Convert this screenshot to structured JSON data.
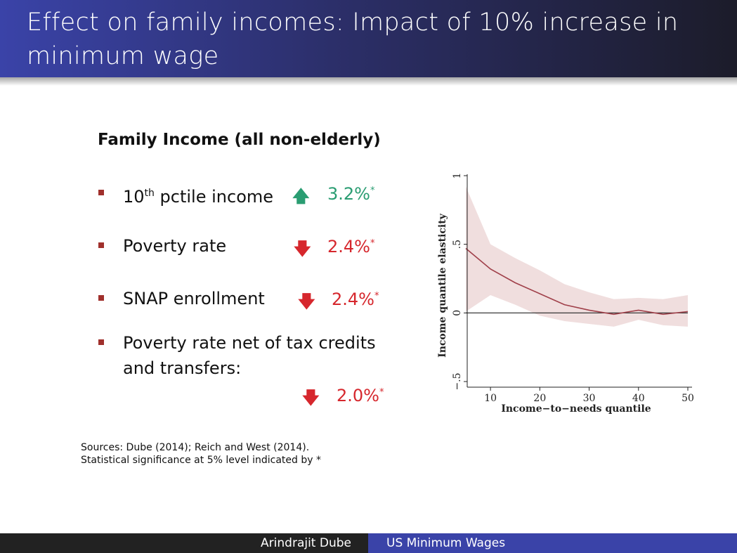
{
  "header": {
    "title": "Effect on family incomes: Impact of 10% increase in minimum wage"
  },
  "main": {
    "subtitle": "Family Income  (all non-elderly)",
    "items": [
      {
        "label": "10",
        "label_sup": "th",
        "label_rest": " pctile income",
        "direction": "up",
        "value": "3.2%",
        "marker": "*"
      },
      {
        "label": "Poverty rate",
        "direction": "down",
        "value": "2.4%",
        "marker": "*"
      },
      {
        "label": "SNAP enrollment",
        "direction": "down",
        "value": "2.4%",
        "marker": "*"
      },
      {
        "label": "Poverty rate net of tax credits",
        "label_line2": "and transfers:",
        "direction": "down",
        "value": "2.0%",
        "marker": "*"
      }
    ],
    "arrows": {
      "up": "🡅",
      "down": "🡇"
    },
    "sources": [
      "Sources: Dube (2014); Reich and West (2014).",
      "Statistical significance at 5% level indicated by *"
    ]
  },
  "chart_data": {
    "type": "line",
    "title": "",
    "xlabel": "Income−to−needs quantile",
    "ylabel": "Income quantile elasticity",
    "xlim": [
      5,
      50
    ],
    "ylim": [
      -0.5,
      1
    ],
    "x_ticks": [
      "10",
      "20",
      "30",
      "40",
      "50"
    ],
    "y_ticks": [
      "−.5",
      "0",
      ".5",
      "1"
    ],
    "series": [
      {
        "x": [
          5,
          10,
          15,
          20,
          25,
          30,
          35,
          40,
          45,
          50
        ],
        "values": [
          0.47,
          0.32,
          0.22,
          0.14,
          0.06,
          0.02,
          -0.01,
          0.02,
          -0.01,
          0.01
        ],
        "ci_upper": [
          0.92,
          0.5,
          0.4,
          0.31,
          0.21,
          0.15,
          0.1,
          0.11,
          0.1,
          0.13
        ],
        "ci_lower": [
          0.01,
          0.13,
          0.06,
          -0.02,
          -0.06,
          -0.08,
          -0.1,
          -0.05,
          -0.09,
          -0.1
        ]
      }
    ],
    "reference_line": 0,
    "colors": {
      "line": "#a0404a",
      "band": "#f0dede",
      "zero": "#222222"
    }
  },
  "footer": {
    "author": "Arindrajit Dube",
    "talk_title": "US Minimum Wages"
  }
}
